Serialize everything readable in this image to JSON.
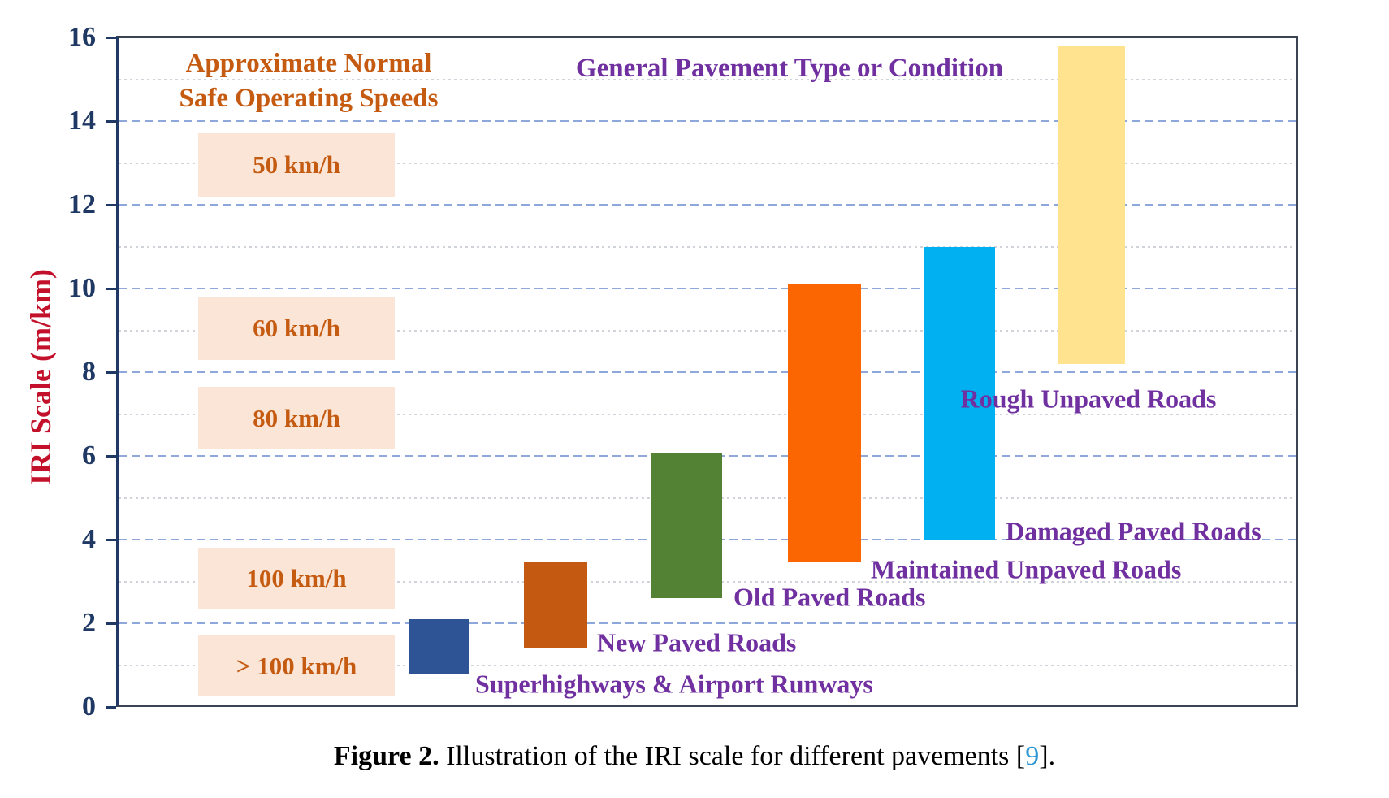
{
  "figure_caption": {
    "label": "Figure 2.",
    "text": "Illustration of the IRI scale for different pavements",
    "ref_bracket_open": "[",
    "ref_number": "9",
    "ref_bracket_close": "]."
  },
  "chart_data": {
    "type": "bar",
    "title_speeds_line1": "Approximate Normal",
    "title_speeds_line2": "Safe Operating Speeds",
    "title_pavement": "General Pavement Type or Condition",
    "ylabel": "IRI Scale (m/km)",
    "ylim": [
      0,
      16
    ],
    "yticks": [
      0,
      2,
      4,
      6,
      8,
      10,
      12,
      14,
      16
    ],
    "grid": {
      "major_lines": "dashed at even IRI values",
      "minor_lines": "dotted at odd IRI values"
    },
    "series": [
      {
        "name": "Superhighways & Airport Runways",
        "iri_min": 0.8,
        "iri_max": 2.1,
        "color": "#2F5496"
      },
      {
        "name": "New Paved Roads",
        "iri_min": 1.4,
        "iri_max": 3.45,
        "color": "#C45911"
      },
      {
        "name": "Old Paved Roads",
        "iri_min": 2.6,
        "iri_max": 6.05,
        "color": "#548235"
      },
      {
        "name": "Maintained Unpaved Roads",
        "iri_min": 3.45,
        "iri_max": 10.1,
        "color": "#FC6602"
      },
      {
        "name": "Damaged Paved Roads",
        "iri_min": 4.0,
        "iri_max": 11.0,
        "color": "#00B0F0"
      },
      {
        "name": "Rough Unpaved Roads",
        "iri_min": 8.2,
        "iri_max": 15.8,
        "color": "#FFE38F"
      }
    ],
    "speed_boxes": [
      {
        "label": "50 km/h",
        "iri_min": 12.2,
        "iri_max": 13.7
      },
      {
        "label": "60 km/h",
        "iri_min": 8.3,
        "iri_max": 9.8
      },
      {
        "label": "80 km/h",
        "iri_min": 6.15,
        "iri_max": 7.65
      },
      {
        "label": "100 km/h",
        "iri_min": 2.35,
        "iri_max": 3.8
      },
      {
        "label": "> 100 km/h",
        "iri_min": 0.25,
        "iri_max": 1.7
      }
    ],
    "colors": {
      "speed_box_fill": "#FBE5D6",
      "speed_text": "#C55A11",
      "pavement_text": "#7030A0",
      "y_axis_title_red": "#C3112B",
      "tick_label_navy": "#1F3864",
      "grid_major_blue": "#8FA8DC",
      "grid_minor_gray": "#D0D4DA",
      "frame_dark": "#3C4454",
      "caption_ref_blue": "#2E96D2"
    }
  }
}
